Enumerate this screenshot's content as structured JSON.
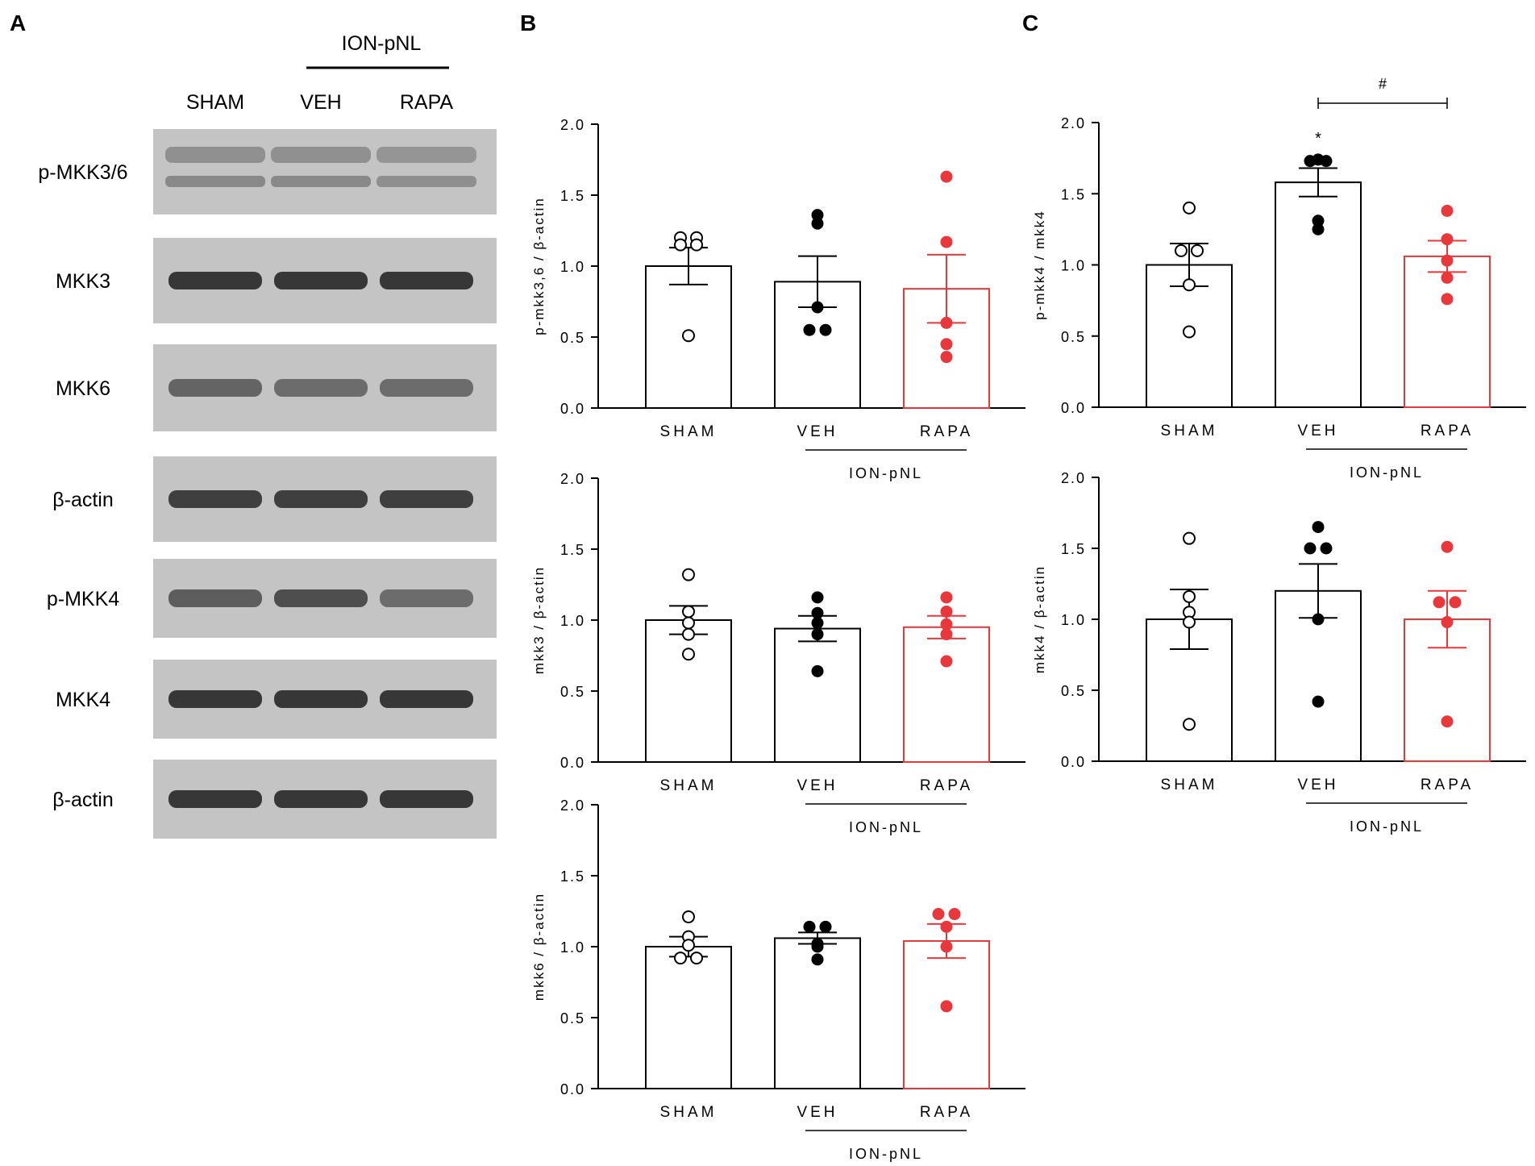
{
  "panel_letters": [
    "A",
    "B",
    "C"
  ],
  "western_blot": {
    "group_header": "ION-pNL",
    "lanes": [
      "SHAM",
      "VEH",
      "RAPA"
    ],
    "rows": [
      {
        "label": "p-MKK3/6",
        "intensities": [
          0.45,
          0.45,
          0.4
        ]
      },
      {
        "label": "MKK3",
        "intensities": [
          0.9,
          0.9,
          0.9
        ]
      },
      {
        "label": "MKK6",
        "intensities": [
          0.6,
          0.55,
          0.55
        ]
      },
      {
        "label": "β-actin",
        "intensities": [
          0.85,
          0.85,
          0.85
        ]
      },
      {
        "label": "p-MKK4",
        "intensities": [
          0.65,
          0.75,
          0.55
        ]
      },
      {
        "label": "MKK4",
        "intensities": [
          0.9,
          0.9,
          0.9
        ]
      },
      {
        "label": "β-actin",
        "intensities": [
          0.9,
          0.9,
          0.9
        ]
      }
    ]
  },
  "colors": {
    "control": "#000000",
    "veh": "#000000",
    "rapa": "#e8383c",
    "blot_bg": "#c4c4c4"
  },
  "chart_data": [
    {
      "type": "bar",
      "panel": "B",
      "categories": [
        "SHAM",
        "VEH",
        "RAPA"
      ],
      "group_label": "ION-pNL",
      "ylabel": "p-mkk3,6 / β-actin",
      "ylim": [
        0,
        2.0
      ],
      "yticks": [
        "0.0",
        "0.5",
        "1.0",
        "1.5",
        "2.0"
      ],
      "values": [
        1.0,
        0.89,
        0.84
      ],
      "sem": [
        0.13,
        0.18,
        0.24
      ],
      "points": [
        [
          1.2,
          1.2,
          1.15,
          1.15,
          0.51
        ],
        [
          1.3,
          1.36,
          0.71,
          0.55,
          0.55
        ],
        [
          1.63,
          1.17,
          0.6,
          0.45,
          0.36
        ]
      ],
      "annotations": []
    },
    {
      "type": "bar",
      "panel": "B",
      "categories": [
        "SHAM",
        "VEH",
        "RAPA"
      ],
      "group_label": "ION-pNL",
      "ylabel": "mkk3 / β-actin",
      "ylim": [
        0,
        2.0
      ],
      "yticks": [
        "0.0",
        "0.5",
        "1.0",
        "1.5",
        "2.0"
      ],
      "values": [
        1.0,
        0.94,
        0.95
      ],
      "sem": [
        0.1,
        0.09,
        0.08
      ],
      "points": [
        [
          1.32,
          1.06,
          0.98,
          0.9,
          0.76
        ],
        [
          1.16,
          1.05,
          0.98,
          0.9,
          0.64
        ],
        [
          1.16,
          1.06,
          0.97,
          0.9,
          0.71
        ]
      ],
      "annotations": []
    },
    {
      "type": "bar",
      "panel": "B",
      "categories": [
        "SHAM",
        "VEH",
        "RAPA"
      ],
      "group_label": "ION-pNL",
      "ylabel": "mkk6 / β-actin",
      "ylim": [
        0,
        2.0
      ],
      "yticks": [
        "0.0",
        "0.5",
        "1.0",
        "1.5",
        "2.0"
      ],
      "values": [
        1.0,
        1.06,
        1.04
      ],
      "sem": [
        0.07,
        0.04,
        0.12
      ],
      "points": [
        [
          1.21,
          1.07,
          1.01,
          0.92,
          0.92
        ],
        [
          1.14,
          1.14,
          1.02,
          1.0,
          0.91
        ],
        [
          1.23,
          1.23,
          1.14,
          1.0,
          0.58
        ]
      ],
      "annotations": []
    },
    {
      "type": "bar",
      "panel": "C",
      "categories": [
        "SHAM",
        "VEH",
        "RAPA"
      ],
      "group_label": "ION-pNL",
      "ylabel": "p-mkk4 / mkk4",
      "ylim": [
        0,
        2.0
      ],
      "yticks": [
        "0.0",
        "0.5",
        "1.0",
        "1.5",
        "2.0"
      ],
      "values": [
        1.0,
        1.58,
        1.06
      ],
      "sem": [
        0.15,
        0.1,
        0.11
      ],
      "points": [
        [
          1.4,
          1.1,
          1.1,
          0.86,
          0.53
        ],
        [
          1.74,
          1.73,
          1.73,
          1.31,
          1.25
        ],
        [
          1.38,
          1.18,
          1.03,
          0.91,
          0.76
        ]
      ],
      "annotations": [
        {
          "text": "*",
          "category": "VEH"
        },
        {
          "text": "#",
          "from": "VEH",
          "to": "RAPA"
        }
      ]
    },
    {
      "type": "bar",
      "panel": "C",
      "categories": [
        "SHAM",
        "VEH",
        "RAPA"
      ],
      "group_label": "ION-pNL",
      "ylabel": "mkk4 / β-actin",
      "ylim": [
        0,
        2.0
      ],
      "yticks": [
        "0.0",
        "0.5",
        "1.0",
        "1.5",
        "2.0"
      ],
      "values": [
        1.0,
        1.2,
        1.0
      ],
      "sem": [
        0.21,
        0.19,
        0.2
      ],
      "points": [
        [
          1.57,
          1.16,
          1.05,
          0.98,
          0.26
        ],
        [
          1.65,
          1.5,
          1.5,
          1.0,
          0.42
        ],
        [
          1.51,
          1.12,
          1.12,
          0.98,
          0.28
        ]
      ],
      "annotations": []
    }
  ]
}
